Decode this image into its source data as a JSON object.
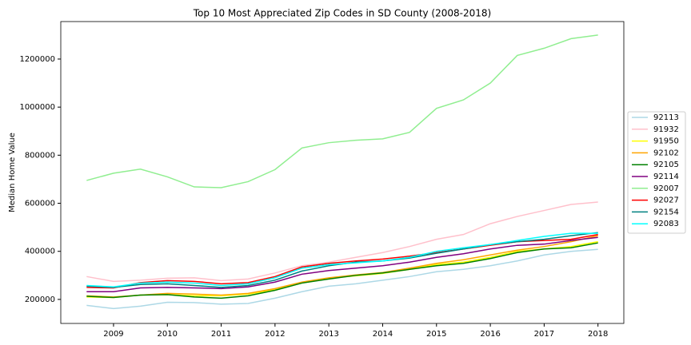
{
  "chart_data": {
    "type": "line",
    "title": "Top 10 Most Appreciated Zip Codes in SD County (2008-2018)",
    "y_label": "Median Home Value",
    "x": [
      2008.5,
      2009,
      2009.5,
      2010,
      2010.5,
      2011,
      2011.5,
      2012,
      2012.5,
      2013,
      2013.5,
      2014,
      2014.5,
      2015,
      2015.5,
      2016,
      2016.5,
      2017,
      2017.5,
      2018
    ],
    "xlim": [
      2008.02,
      2018.48
    ],
    "xticks": [
      2009,
      2010,
      2011,
      2012,
      2013,
      2014,
      2015,
      2016,
      2017,
      2018
    ],
    "ylim": [
      100000,
      1356000
    ],
    "yticks": [
      200000,
      400000,
      600000,
      800000,
      1000000,
      1200000
    ],
    "legend": "right",
    "series": [
      {
        "name": "92113",
        "color": "lightblue",
        "values": [
          175000,
          162000,
          172000,
          188000,
          187000,
          180000,
          183000,
          205000,
          232000,
          255000,
          265000,
          280000,
          295000,
          315000,
          325000,
          340000,
          360000,
          385000,
          400000,
          408000
        ]
      },
      {
        "name": "91932",
        "color": "pink",
        "values": [
          295000,
          275000,
          280000,
          288000,
          290000,
          278000,
          285000,
          310000,
          340000,
          355000,
          375000,
          395000,
          420000,
          450000,
          470000,
          515000,
          545000,
          570000,
          595000,
          605000
        ]
      },
      {
        "name": "91950",
        "color": "yellow",
        "values": [
          210000,
          208000,
          218000,
          220000,
          215000,
          215000,
          222000,
          240000,
          268000,
          288000,
          298000,
          308000,
          325000,
          345000,
          355000,
          375000,
          400000,
          410000,
          420000,
          440000
        ]
      },
      {
        "name": "92102",
        "color": "orange",
        "values": [
          215000,
          210000,
          218000,
          225000,
          222000,
          218000,
          225000,
          245000,
          272000,
          290000,
          302000,
          312000,
          330000,
          350000,
          365000,
          385000,
          405000,
          420000,
          440000,
          465000
        ]
      },
      {
        "name": "92105",
        "color": "green",
        "values": [
          213000,
          208000,
          218000,
          220000,
          210000,
          205000,
          215000,
          238000,
          268000,
          285000,
          300000,
          310000,
          325000,
          340000,
          350000,
          370000,
          395000,
          410000,
          415000,
          435000
        ]
      },
      {
        "name": "92114",
        "color": "purple",
        "values": [
          232000,
          232000,
          248000,
          250000,
          248000,
          245000,
          252000,
          272000,
          305000,
          320000,
          330000,
          340000,
          355000,
          375000,
          390000,
          410000,
          425000,
          430000,
          445000,
          458000
        ]
      },
      {
        "name": "92007",
        "color": "lightgreen",
        "values": [
          695000,
          725000,
          742000,
          710000,
          668000,
          665000,
          690000,
          740000,
          830000,
          852000,
          862000,
          868000,
          895000,
          995000,
          1030000,
          1100000,
          1215000,
          1245000,
          1285000,
          1300000
        ]
      },
      {
        "name": "92027",
        "color": "red",
        "values": [
          250000,
          248000,
          270000,
          278000,
          275000,
          265000,
          270000,
          295000,
          335000,
          350000,
          360000,
          368000,
          380000,
          395000,
          410000,
          425000,
          440000,
          445000,
          450000,
          470000
        ]
      },
      {
        "name": "92154",
        "color": "teal",
        "values": [
          255000,
          250000,
          262000,
          265000,
          258000,
          250000,
          258000,
          280000,
          318000,
          340000,
          355000,
          360000,
          372000,
          392000,
          410000,
          428000,
          440000,
          450000,
          465000,
          478000
        ]
      },
      {
        "name": "92083",
        "color": "cyan",
        "values": [
          258000,
          252000,
          268000,
          272000,
          268000,
          258000,
          265000,
          290000,
          330000,
          345000,
          352000,
          360000,
          375000,
          400000,
          415000,
          428000,
          445000,
          462000,
          475000,
          475000
        ]
      }
    ]
  }
}
